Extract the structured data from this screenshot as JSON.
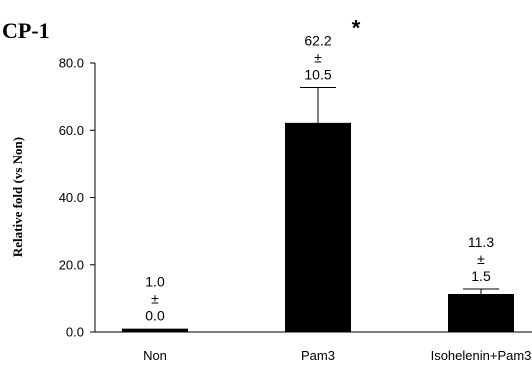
{
  "chart_data": {
    "type": "bar",
    "title": "CP-1",
    "ylabel": "Relative fold (vs Non)",
    "xlabel": "",
    "ylim": [
      0,
      80
    ],
    "yticks": [
      "0.0",
      "20.0",
      "40.0",
      "60.0",
      "80.0"
    ],
    "categories": [
      "Non",
      "Pam3",
      "Isohelenin+Pam3"
    ],
    "values": [
      1.0,
      62.2,
      11.3
    ],
    "errors": [
      0.0,
      10.5,
      1.5
    ],
    "value_labels": [
      "1.0",
      "62.2",
      "11.3"
    ],
    "pm_symbol": "±",
    "error_labels": [
      "0.0",
      "10.5",
      "1.5"
    ],
    "significance": [
      "",
      "*",
      ""
    ],
    "bar_color": "#000000",
    "grid": false,
    "legend": "none"
  }
}
